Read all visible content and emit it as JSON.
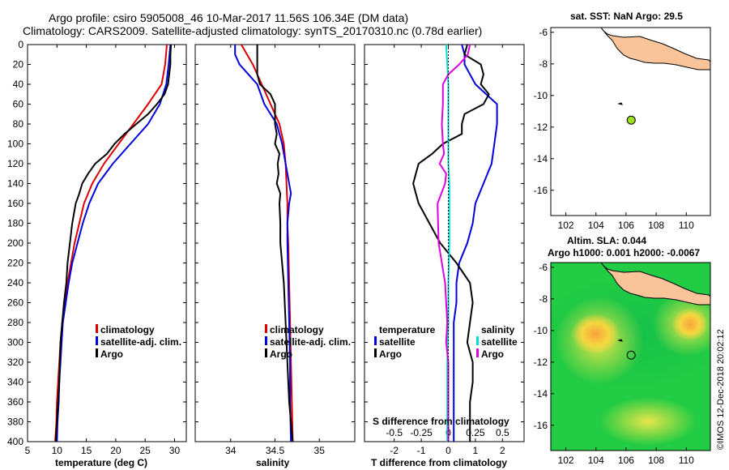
{
  "title_line1": "Argo profile: csiro 5905008_46 10-Mar-2017 11.56S 106.34E (DM data)",
  "title_line2": "Climatology: CARS2009. Satellite-adjusted climatology: synTS_20170310.nc (0.78d earlier)",
  "credit": "©IMOS 12-Dec-2018 20:02:12",
  "colors": {
    "climatology": "#dd0000",
    "satellite": "#0000dd",
    "argo": "#000000",
    "sat_sal": "#00dddd",
    "argo_sal": "#dd00dd",
    "land": "#f9c49a"
  },
  "chart_data": [
    {
      "type": "line",
      "id": "temperature",
      "xlabel": "temperature (deg C)",
      "xlim": [
        5,
        32
      ],
      "xticks": [
        5,
        10,
        15,
        20,
        25,
        30
      ],
      "ylim": [
        0,
        400
      ],
      "yticks": [
        0,
        20,
        40,
        60,
        80,
        100,
        120,
        140,
        160,
        180,
        200,
        220,
        240,
        260,
        280,
        300,
        320,
        340,
        360,
        380,
        400
      ],
      "legend": [
        "climatology",
        "satellite-adj. clim.",
        "Argo"
      ],
      "series": [
        {
          "name": "climatology",
          "color": "#dd0000",
          "depth": [
            0,
            20,
            40,
            60,
            80,
            100,
            120,
            140,
            160,
            180,
            200,
            220,
            240,
            260,
            280,
            300,
            320,
            340,
            360,
            380,
            400
          ],
          "values": [
            28.7,
            28.4,
            27.8,
            25.5,
            23.0,
            20.5,
            18.0,
            16.0,
            14.6,
            13.8,
            13.0,
            12.4,
            11.8,
            11.3,
            10.9,
            10.6,
            10.4,
            10.2,
            10.0,
            9.9,
            9.7
          ]
        },
        {
          "name": "satellite-adj. clim.",
          "color": "#0000dd",
          "depth": [
            0,
            20,
            40,
            60,
            80,
            100,
            120,
            140,
            160,
            180,
            200,
            220,
            240,
            260,
            280,
            300,
            320,
            340,
            360,
            380,
            400
          ],
          "values": [
            29.3,
            29.0,
            28.6,
            27.5,
            25.5,
            22.5,
            19.5,
            17.0,
            15.5,
            14.4,
            13.5,
            12.6,
            12.0,
            11.5,
            11.0,
            10.8,
            10.6,
            10.4,
            10.3,
            10.1,
            10.0
          ]
        },
        {
          "name": "Argo",
          "color": "#000000",
          "depth": [
            0,
            10,
            20,
            30,
            40,
            50,
            60,
            70,
            80,
            90,
            100,
            110,
            120,
            130,
            140,
            150,
            160,
            180,
            200,
            220,
            240,
            260,
            280,
            300,
            320,
            340,
            360,
            380,
            400
          ],
          "values": [
            29.4,
            29.3,
            29.3,
            29.1,
            28.9,
            28.3,
            27.0,
            25.5,
            23.5,
            21.5,
            19.8,
            18.5,
            16.5,
            15.3,
            14.3,
            13.8,
            13.2,
            12.6,
            12.2,
            11.8,
            11.6,
            11.2,
            10.9,
            10.6,
            10.5,
            10.4,
            10.2,
            10.0,
            9.8
          ]
        }
      ]
    },
    {
      "type": "line",
      "id": "salinity",
      "xlabel": "salinity",
      "xlim": [
        33.6,
        35.4
      ],
      "xticks": [
        34,
        34.5,
        35
      ],
      "ylim": [
        0,
        400
      ],
      "legend": [
        "climatology",
        "satellite-adj. clim.",
        "Argo"
      ],
      "series": [
        {
          "name": "climatology",
          "color": "#dd0000",
          "depth": [
            0,
            20,
            40,
            60,
            80,
            100,
            120,
            140,
            160,
            180,
            200,
            240,
            280,
            320,
            360,
            400
          ],
          "values": [
            34.12,
            34.25,
            34.35,
            34.45,
            34.55,
            34.6,
            34.62,
            34.63,
            34.64,
            34.64,
            34.65,
            34.66,
            34.67,
            34.68,
            34.69,
            34.7
          ]
        },
        {
          "name": "satellite-adj. clim.",
          "color": "#0000dd",
          "depth": [
            0,
            10,
            20,
            30,
            40,
            60,
            80,
            100,
            120,
            140,
            150,
            160,
            180,
            200,
            240,
            280,
            320,
            360,
            400
          ],
          "values": [
            34.05,
            34.05,
            34.1,
            34.2,
            34.3,
            34.38,
            34.52,
            34.58,
            34.62,
            34.66,
            34.68,
            34.66,
            34.64,
            34.64,
            34.65,
            34.66,
            34.67,
            34.67,
            34.68
          ]
        },
        {
          "name": "Argo",
          "color": "#000000",
          "depth": [
            0,
            10,
            20,
            30,
            40,
            50,
            60,
            80,
            90,
            100,
            110,
            120,
            130,
            140,
            150,
            160,
            180,
            200,
            240,
            280,
            320,
            360,
            400
          ],
          "values": [
            34.3,
            34.3,
            34.3,
            34.3,
            34.33,
            34.45,
            34.5,
            34.5,
            34.52,
            34.5,
            34.55,
            34.53,
            34.54,
            34.52,
            34.56,
            34.55,
            34.56,
            34.56,
            34.6,
            34.62,
            34.64,
            34.66,
            34.7
          ]
        }
      ]
    },
    {
      "type": "line",
      "id": "differences",
      "xlabel": "T difference from climatology",
      "xlabel_top": "S difference from climatology",
      "xlim": [
        -3.1,
        2.8
      ],
      "xticks": [
        -2,
        -1,
        0,
        1,
        2
      ],
      "xticks_top": [
        "-0.5",
        "-0.25",
        "0",
        "0.25",
        "0.5"
      ],
      "ylim": [
        0,
        400
      ],
      "legend_left": {
        "title": "temperature",
        "items": [
          "satellite",
          "Argo"
        ]
      },
      "legend_right": {
        "title": "salinity",
        "items": [
          "satellite",
          "Argo"
        ]
      },
      "series": [
        {
          "name": "T satellite",
          "color": "#0000dd",
          "depth": [
            0,
            10,
            20,
            40,
            60,
            80,
            100,
            120,
            140,
            160,
            180,
            200,
            220,
            240,
            260,
            280,
            300,
            320,
            340,
            360,
            380,
            400
          ],
          "values": [
            0.5,
            0.6,
            0.6,
            1.0,
            1.8,
            1.8,
            1.7,
            1.6,
            1.3,
            1.0,
            0.9,
            0.7,
            0.4,
            0.3,
            0.3,
            0.2,
            0.2,
            0.2,
            0.2,
            0.2,
            0.2,
            0.2
          ]
        },
        {
          "name": "T Argo",
          "color": "#000000",
          "depth": [
            0,
            10,
            20,
            30,
            40,
            50,
            60,
            70,
            80,
            90,
            100,
            110,
            120,
            130,
            140,
            150,
            160,
            170,
            180,
            190,
            200,
            220,
            240,
            260,
            280,
            300,
            320,
            340,
            360,
            380,
            400
          ],
          "values": [
            0.7,
            0.6,
            1.2,
            1.3,
            1.2,
            1.5,
            1.3,
            0.6,
            0.5,
            0.5,
            -0.2,
            -0.6,
            -1.1,
            -1.2,
            -1.3,
            -1.2,
            -1.1,
            -0.9,
            -0.7,
            -0.5,
            -0.3,
            0.3,
            0.8,
            0.9,
            0.8,
            0.7,
            0.9,
            0.9,
            0.8,
            0.8,
            0.8
          ]
        },
        {
          "name": "S satellite",
          "color": "#00dddd",
          "depth": [
            0,
            20,
            40,
            60,
            80,
            100,
            120,
            140,
            160,
            200,
            240,
            280,
            320,
            360,
            400
          ],
          "values": [
            -0.02,
            -0.01,
            0.0,
            0.0,
            0.0,
            0.0,
            0.0,
            0.01,
            0.01,
            0.01,
            0.0,
            0.0,
            -0.01,
            -0.01,
            -0.01
          ]
        },
        {
          "name": "S Argo",
          "color": "#dd00dd",
          "depth": [
            0,
            10,
            20,
            30,
            40,
            60,
            80,
            100,
            110,
            120,
            130,
            140,
            160,
            200,
            240,
            280,
            300,
            320,
            360,
            400
          ],
          "values": [
            0.2,
            0.18,
            0.1,
            0.0,
            -0.05,
            -0.05,
            -0.06,
            -0.05,
            -0.04,
            -0.08,
            -0.02,
            -0.03,
            -0.1,
            -0.09,
            -0.03,
            -0.01,
            -0.02,
            0.0,
            0.0,
            0.0
          ]
        }
      ]
    },
    {
      "type": "map",
      "id": "sst-map",
      "title": "sat. SST: NaN Argo: 29.5",
      "xticks": [
        102,
        104,
        106,
        108,
        110
      ],
      "yticks": [
        -6,
        -8,
        -10,
        -12,
        -14,
        -16
      ],
      "xlim": [
        101,
        111.6
      ],
      "ylim": [
        -17.6,
        -5.7
      ],
      "argo_location": {
        "lon": 106.34,
        "lat": -11.56
      }
    },
    {
      "type": "heatmap",
      "id": "sla-map",
      "title1": "Altim. SLA: 0.044",
      "title2": "Argo h1000: 0.001 h2000: -0.0067",
      "xticks": [
        102,
        104,
        106,
        108,
        110
      ],
      "yticks": [
        -6,
        -8,
        -10,
        -12,
        -14,
        -16
      ],
      "xlim": [
        101,
        111.6
      ],
      "ylim": [
        -17.6,
        -5.7
      ],
      "argo_location": {
        "lon": 106.34,
        "lat": -11.56
      }
    }
  ]
}
